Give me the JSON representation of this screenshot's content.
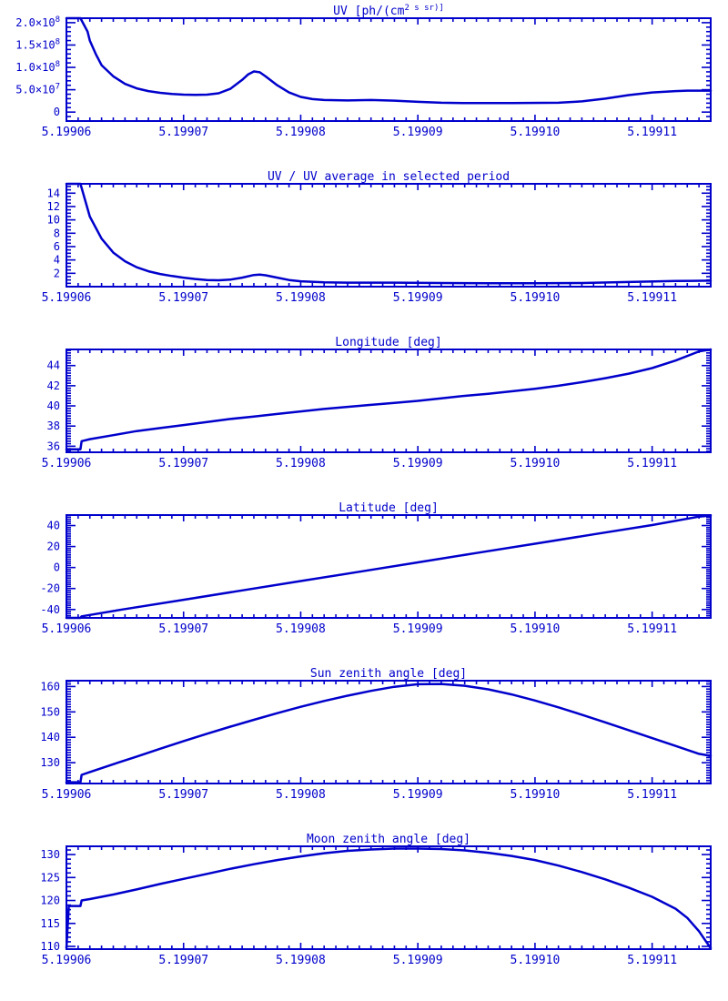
{
  "page": {
    "background": "#ffffff",
    "accent": "#0000cc"
  },
  "x_axis": {
    "range": [
      5.19906,
      5.199115
    ],
    "major_ticks": [
      {
        "v": 5.19906,
        "label": "5.19906"
      },
      {
        "v": 5.19907,
        "label": "5.19907"
      },
      {
        "v": 5.19908,
        "label": "5.19908"
      },
      {
        "v": 5.19909,
        "label": "5.19909"
      },
      {
        "v": 5.1991,
        "label": "5.19910"
      },
      {
        "v": 5.19911,
        "label": "5.19911"
      }
    ],
    "minor_per_major": 10,
    "minor_step": 1e-06
  },
  "chart_data": [
    {
      "type": "line",
      "name": "uv",
      "title": "UV [ph/(cm^2 s sr)]",
      "ylim": [
        -20000000,
        210000000
      ],
      "yticks": [
        {
          "v": 0,
          "label": "0"
        },
        {
          "v": 50000000,
          "label": "5.0×10^7"
        },
        {
          "v": 100000000,
          "label": "1.0×10^8"
        },
        {
          "v": 150000000,
          "label": "1.5×10^8"
        },
        {
          "v": 200000000,
          "label": "2.0×10^8"
        }
      ],
      "yminor": 5,
      "points": [
        [
          5.19906,
          260000000.0
        ],
        [
          5.1990612,
          260000000.0
        ],
        [
          5.1990618,
          180000000.0
        ],
        [
          5.199062,
          160000000.0
        ],
        [
          5.1990625,
          130000000.0
        ],
        [
          5.199063,
          105000000.0
        ],
        [
          5.199064,
          80000000.0
        ],
        [
          5.199065,
          63000000.0
        ],
        [
          5.199066,
          53000000.0
        ],
        [
          5.199067,
          47000000.0
        ],
        [
          5.199068,
          43000000.0
        ],
        [
          5.199069,
          40500000.0
        ],
        [
          5.19907,
          39000000.0
        ],
        [
          5.199071,
          38500000.0
        ],
        [
          5.199072,
          39000000.0
        ],
        [
          5.199073,
          42000000.0
        ],
        [
          5.199074,
          52000000.0
        ],
        [
          5.199075,
          72000000.0
        ],
        [
          5.1990755,
          84000000.0
        ],
        [
          5.199076,
          91000000.0
        ],
        [
          5.1990765,
          89000000.0
        ],
        [
          5.199077,
          80000000.0
        ],
        [
          5.199078,
          60000000.0
        ],
        [
          5.199079,
          44000000.0
        ],
        [
          5.19908,
          34000000.0
        ],
        [
          5.199081,
          29000000.0
        ],
        [
          5.199082,
          27000000.0
        ],
        [
          5.199084,
          26000000.0
        ],
        [
          5.199086,
          27000000.0
        ],
        [
          5.199088,
          25500000.0
        ],
        [
          5.19909,
          23000000.0
        ],
        [
          5.199092,
          21000000.0
        ],
        [
          5.199094,
          20000000.0
        ],
        [
          5.199098,
          20000000.0
        ],
        [
          5.199102,
          21000000.0
        ],
        [
          5.199104,
          24000000.0
        ],
        [
          5.199106,
          30000000.0
        ],
        [
          5.199108,
          38000000.0
        ],
        [
          5.19911,
          44000000.0
        ],
        [
          5.199112,
          47000000.0
        ],
        [
          5.199113,
          48000000.0
        ],
        [
          5.199115,
          48000000.0
        ]
      ]
    },
    {
      "type": "line",
      "name": "uv-ratio",
      "title": "UV / UV average in selected period",
      "ylim": [
        0,
        15.4
      ],
      "yticks": [
        {
          "v": 2,
          "label": "2"
        },
        {
          "v": 4,
          "label": "4"
        },
        {
          "v": 6,
          "label": "6"
        },
        {
          "v": 8,
          "label": "8"
        },
        {
          "v": 10,
          "label": "10"
        },
        {
          "v": 12,
          "label": "12"
        },
        {
          "v": 14,
          "label": "14"
        }
      ],
      "yminor": 4,
      "points": [
        [
          5.19906,
          16
        ],
        [
          5.1990612,
          16
        ],
        [
          5.199062,
          10.5
        ],
        [
          5.199063,
          7.2
        ],
        [
          5.199064,
          5.1
        ],
        [
          5.199065,
          3.8
        ],
        [
          5.199066,
          2.9
        ],
        [
          5.199067,
          2.3
        ],
        [
          5.199068,
          1.9
        ],
        [
          5.199069,
          1.6
        ],
        [
          5.19907,
          1.35
        ],
        [
          5.199071,
          1.15
        ],
        [
          5.199072,
          1.0
        ],
        [
          5.199073,
          0.95
        ],
        [
          5.199074,
          1.05
        ],
        [
          5.199075,
          1.35
        ],
        [
          5.199076,
          1.75
        ],
        [
          5.1990765,
          1.8
        ],
        [
          5.199077,
          1.7
        ],
        [
          5.199078,
          1.35
        ],
        [
          5.199079,
          1.0
        ],
        [
          5.19908,
          0.8
        ],
        [
          5.199082,
          0.65
        ],
        [
          5.199084,
          0.6
        ],
        [
          5.199088,
          0.6
        ],
        [
          5.199092,
          0.55
        ],
        [
          5.199096,
          0.5
        ],
        [
          5.1991,
          0.5
        ],
        [
          5.199104,
          0.55
        ],
        [
          5.199108,
          0.7
        ],
        [
          5.199112,
          0.85
        ],
        [
          5.199115,
          0.9
        ]
      ]
    },
    {
      "type": "line",
      "name": "longitude",
      "title": "Longitude [deg]",
      "ylim": [
        35.4,
        45.6
      ],
      "yticks": [
        {
          "v": 36,
          "label": "36"
        },
        {
          "v": 38,
          "label": "38"
        },
        {
          "v": 40,
          "label": "40"
        },
        {
          "v": 42,
          "label": "42"
        },
        {
          "v": 44,
          "label": "44"
        }
      ],
      "yminor": 8,
      "points": [
        [
          5.19906,
          35.7
        ],
        [
          5.1990612,
          35.7
        ],
        [
          5.1990613,
          36.5
        ],
        [
          5.199062,
          36.7
        ],
        [
          5.199064,
          37.1
        ],
        [
          5.199066,
          37.5
        ],
        [
          5.199068,
          37.8
        ],
        [
          5.19907,
          38.1
        ],
        [
          5.199072,
          38.4
        ],
        [
          5.199074,
          38.7
        ],
        [
          5.199076,
          38.95
        ],
        [
          5.199078,
          39.2
        ],
        [
          5.19908,
          39.45
        ],
        [
          5.199082,
          39.7
        ],
        [
          5.199084,
          39.9
        ],
        [
          5.199086,
          40.1
        ],
        [
          5.199088,
          40.3
        ],
        [
          5.19909,
          40.5
        ],
        [
          5.199092,
          40.75
        ],
        [
          5.199094,
          41.0
        ],
        [
          5.199096,
          41.2
        ],
        [
          5.199098,
          41.45
        ],
        [
          5.1991,
          41.7
        ],
        [
          5.199102,
          42.0
        ],
        [
          5.199104,
          42.35
        ],
        [
          5.199106,
          42.75
        ],
        [
          5.199108,
          43.2
        ],
        [
          5.19911,
          43.75
        ],
        [
          5.199112,
          44.5
        ],
        [
          5.199114,
          45.4
        ],
        [
          5.199115,
          45.7
        ]
      ]
    },
    {
      "type": "line",
      "name": "latitude",
      "title": "Latitude [deg]",
      "ylim": [
        -48,
        50
      ],
      "yticks": [
        {
          "v": -40,
          "label": "-40"
        },
        {
          "v": -20,
          "label": "-20"
        },
        {
          "v": 0,
          "label": "0"
        },
        {
          "v": 20,
          "label": "20"
        },
        {
          "v": 40,
          "label": "40"
        }
      ],
      "yminor": 10,
      "points": [
        [
          5.19906,
          -48.3
        ],
        [
          5.1990612,
          -48.3
        ],
        [
          5.1990613,
          -46.5
        ],
        [
          5.199065,
          -39.6
        ],
        [
          5.19907,
          -30.7
        ],
        [
          5.199075,
          -21.8
        ],
        [
          5.19908,
          -12.9
        ],
        [
          5.199085,
          -4.0
        ],
        [
          5.19909,
          4.9
        ],
        [
          5.199095,
          13.8
        ],
        [
          5.1991,
          22.7
        ],
        [
          5.199105,
          31.6
        ],
        [
          5.19911,
          40.5
        ],
        [
          5.199114,
          48.5
        ],
        [
          5.199115,
          49.6
        ]
      ]
    },
    {
      "type": "line",
      "name": "sun-zenith",
      "title": "Sun zenith angle [deg]",
      "ylim": [
        121.8,
        162.3
      ],
      "yticks": [
        {
          "v": 130,
          "label": "130"
        },
        {
          "v": 140,
          "label": "140"
        },
        {
          "v": 150,
          "label": "150"
        },
        {
          "v": 160,
          "label": "160"
        }
      ],
      "yminor": 10,
      "points": [
        [
          5.19906,
          122.3
        ],
        [
          5.1990612,
          122.3
        ],
        [
          5.1990613,
          125.2
        ],
        [
          5.199062,
          126.3
        ],
        [
          5.199064,
          129.4
        ],
        [
          5.199066,
          132.4
        ],
        [
          5.199068,
          135.5
        ],
        [
          5.19907,
          138.5
        ],
        [
          5.199072,
          141.4
        ],
        [
          5.199074,
          144.2
        ],
        [
          5.199076,
          146.9
        ],
        [
          5.199078,
          149.5
        ],
        [
          5.19908,
          152.0
        ],
        [
          5.199082,
          154.3
        ],
        [
          5.199084,
          156.4
        ],
        [
          5.199086,
          158.3
        ],
        [
          5.199088,
          159.9
        ],
        [
          5.19909,
          160.9
        ],
        [
          5.199092,
          161.0
        ],
        [
          5.199094,
          160.3
        ],
        [
          5.199096,
          158.9
        ],
        [
          5.199098,
          156.9
        ],
        [
          5.1991,
          154.5
        ],
        [
          5.199102,
          151.8
        ],
        [
          5.199104,
          148.9
        ],
        [
          5.199106,
          145.9
        ],
        [
          5.199108,
          142.8
        ],
        [
          5.19911,
          139.7
        ],
        [
          5.199112,
          136.6
        ],
        [
          5.199114,
          133.5
        ],
        [
          5.199115,
          132.7
        ]
      ]
    },
    {
      "type": "line",
      "name": "moon-zenith",
      "title": "Moon zenith angle [deg]",
      "ylim": [
        109.4,
        131.8
      ],
      "yticks": [
        {
          "v": 110,
          "label": "110"
        },
        {
          "v": 115,
          "label": "115"
        },
        {
          "v": 120,
          "label": "120"
        },
        {
          "v": 125,
          "label": "125"
        },
        {
          "v": 130,
          "label": "130"
        }
      ],
      "yminor": 5,
      "points": [
        [
          5.19906,
          109.6
        ],
        [
          5.1990602,
          118.8
        ],
        [
          5.1990612,
          118.8
        ],
        [
          5.1990613,
          120.0
        ],
        [
          5.199062,
          120.3
        ],
        [
          5.199064,
          121.3
        ],
        [
          5.199066,
          122.4
        ],
        [
          5.199068,
          123.6
        ],
        [
          5.19907,
          124.7
        ],
        [
          5.199072,
          125.8
        ],
        [
          5.199074,
          126.9
        ],
        [
          5.199076,
          127.9
        ],
        [
          5.199078,
          128.8
        ],
        [
          5.19908,
          129.6
        ],
        [
          5.199082,
          130.3
        ],
        [
          5.199084,
          130.8
        ],
        [
          5.199086,
          131.1
        ],
        [
          5.199088,
          131.3
        ],
        [
          5.19909,
          131.3
        ],
        [
          5.199092,
          131.2
        ],
        [
          5.199094,
          130.9
        ],
        [
          5.199096,
          130.4
        ],
        [
          5.199098,
          129.7
        ],
        [
          5.1991,
          128.8
        ],
        [
          5.199102,
          127.6
        ],
        [
          5.199104,
          126.2
        ],
        [
          5.199106,
          124.6
        ],
        [
          5.199108,
          122.8
        ],
        [
          5.19911,
          120.8
        ],
        [
          5.199112,
          118.2
        ],
        [
          5.199113,
          116.2
        ],
        [
          5.199114,
          113.3
        ],
        [
          5.199115,
          109.6
        ]
      ]
    }
  ]
}
